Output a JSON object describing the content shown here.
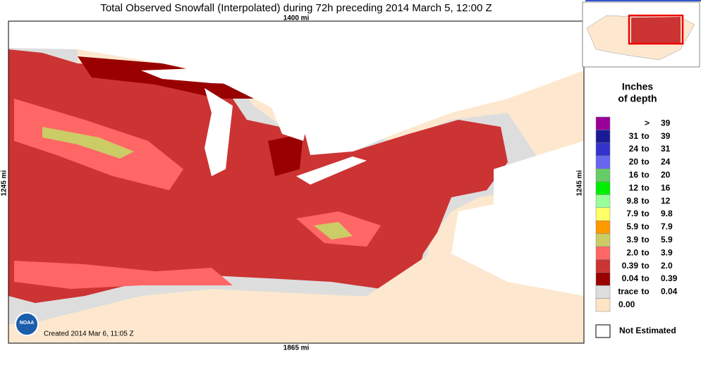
{
  "header": {
    "title": "Total Observed Snowfall (Interpolated) during 72h preceding 2014 March 5, 12:00 Z"
  },
  "scale": {
    "top": "1400 mi",
    "left": "1245 mi",
    "right": "1245 mi",
    "bottom": "1865 mi"
  },
  "footer": {
    "created": "Created 2014 Mar 6, 11:05 Z",
    "logo": "NOAA"
  },
  "legend": {
    "title": [
      "Inches",
      "of depth"
    ],
    "items": [
      {
        "color": "#990099",
        "parts": [
          ">",
          "39"
        ]
      },
      {
        "color": "#1a1a99",
        "parts": [
          "31",
          "to",
          "39"
        ]
      },
      {
        "color": "#3333cc",
        "parts": [
          "24",
          "to",
          "31"
        ]
      },
      {
        "color": "#6666ee",
        "parts": [
          "20",
          "to",
          "24"
        ]
      },
      {
        "color": "#66cc66",
        "parts": [
          "16",
          "to",
          "20"
        ]
      },
      {
        "color": "#00ee00",
        "parts": [
          "12",
          "to",
          "16"
        ]
      },
      {
        "color": "#99ff99",
        "parts": [
          "9.8",
          "to",
          "12"
        ]
      },
      {
        "color": "#ffff66",
        "parts": [
          "7.9",
          "to",
          "9.8"
        ]
      },
      {
        "color": "#ff9900",
        "parts": [
          "5.9",
          "to",
          "7.9"
        ]
      },
      {
        "color": "#cccc66",
        "parts": [
          "3.9",
          "to",
          "5.9"
        ]
      },
      {
        "color": "#ff6666",
        "parts": [
          "2.0",
          "to",
          "3.9"
        ]
      },
      {
        "color": "#cc3333",
        "parts": [
          "0.39",
          "to",
          "2.0"
        ]
      },
      {
        "color": "#990000",
        "parts": [
          "0.04",
          "to",
          "0.39"
        ]
      },
      {
        "color": "#dddddd",
        "parts": [
          "trace",
          "to",
          "0.04"
        ]
      },
      {
        "color": "#ffe4c4",
        "parts": [
          "0.00"
        ]
      }
    ],
    "not_estimated": {
      "color": "#ffffff",
      "label": "Not Estimated"
    }
  }
}
